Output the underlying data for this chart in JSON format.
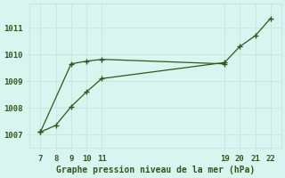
{
  "line1_x": [
    7,
    8,
    9,
    10,
    11,
    19,
    20,
    21,
    22
  ],
  "line1_y": [
    1007.1,
    1007.35,
    1008.05,
    1008.6,
    1009.1,
    1009.7,
    1010.3,
    1010.7,
    1011.35
  ],
  "line2_x": [
    7,
    9,
    10,
    11,
    19
  ],
  "line2_y": [
    1007.1,
    1009.65,
    1009.75,
    1009.82,
    1009.65
  ],
  "line_color": "#2d5a1b",
  "bg_color": "#d8f5f0",
  "grid_color": "#c8e8e0",
  "xlabel": "Graphe pression niveau de la mer (hPa)",
  "xticks": [
    7,
    8,
    9,
    10,
    11,
    19,
    20,
    21,
    22
  ],
  "yticks": [
    1007,
    1008,
    1009,
    1010,
    1011
  ],
  "ylim": [
    1006.5,
    1011.9
  ],
  "xlim": [
    6.3,
    22.7
  ]
}
